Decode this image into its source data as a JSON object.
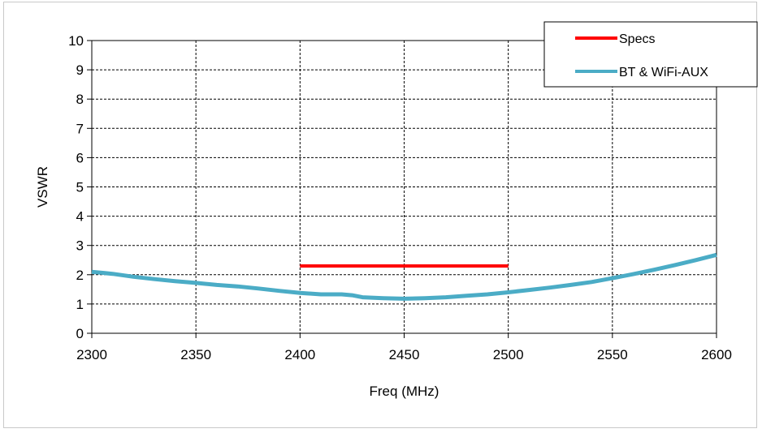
{
  "chart_data": {
    "type": "line",
    "xlabel": "Freq (MHz)",
    "ylabel": "VSWR",
    "xlim": [
      2300,
      2600
    ],
    "ylim": [
      0,
      10
    ],
    "x_ticks": [
      "2300",
      "2350",
      "2400",
      "2450",
      "2500",
      "2550",
      "2600"
    ],
    "y_ticks": [
      "0",
      "1",
      "2",
      "3",
      "4",
      "5",
      "6",
      "7",
      "8",
      "9",
      "10"
    ],
    "grid": true,
    "legend_position": "top-right",
    "series": [
      {
        "name": "Specs",
        "color": "#ff0000",
        "x": [
          2400,
          2500
        ],
        "y": [
          2.3,
          2.3
        ]
      },
      {
        "name": "BT & WiFi-AUX",
        "color": "#4bacc6",
        "x": [
          2300,
          2310,
          2320,
          2330,
          2340,
          2350,
          2360,
          2370,
          2380,
          2390,
          2400,
          2410,
          2420,
          2425,
          2430,
          2440,
          2450,
          2460,
          2470,
          2480,
          2490,
          2500,
          2510,
          2520,
          2530,
          2540,
          2550,
          2560,
          2570,
          2580,
          2590,
          2600
        ],
        "y": [
          2.1,
          2.03,
          1.93,
          1.85,
          1.78,
          1.72,
          1.65,
          1.6,
          1.53,
          1.45,
          1.38,
          1.33,
          1.33,
          1.3,
          1.23,
          1.2,
          1.18,
          1.2,
          1.23,
          1.28,
          1.33,
          1.4,
          1.48,
          1.56,
          1.65,
          1.75,
          1.88,
          2.02,
          2.17,
          2.33,
          2.5,
          2.68
        ]
      }
    ]
  }
}
